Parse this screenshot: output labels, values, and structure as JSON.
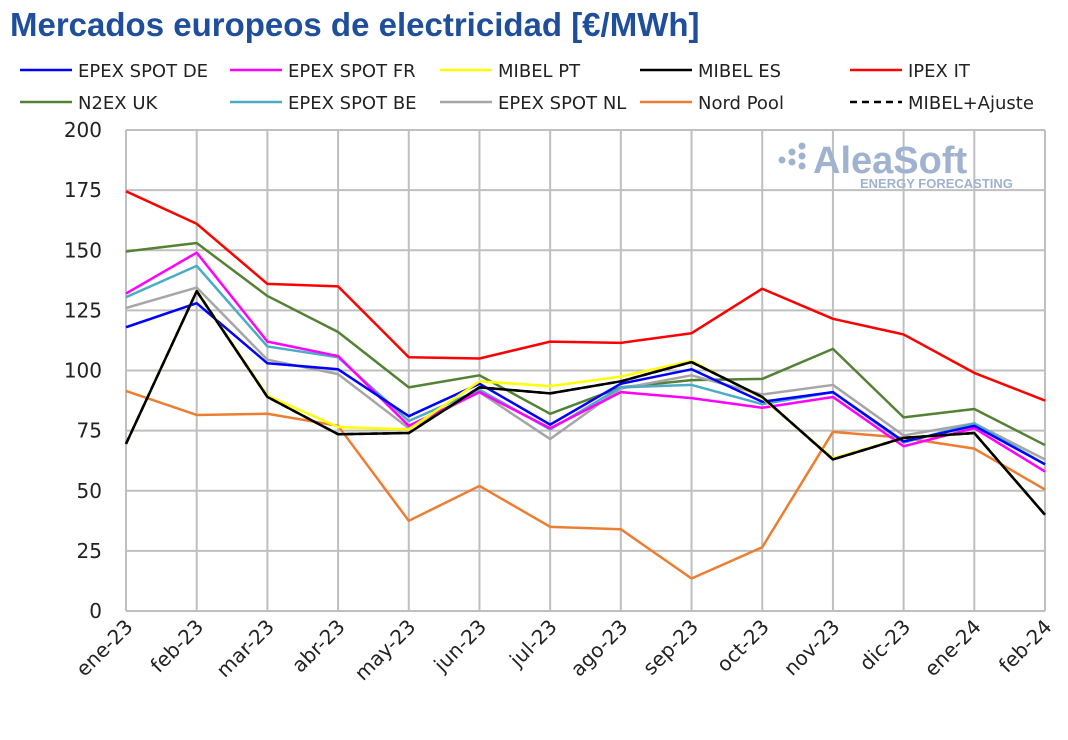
{
  "chart_data": {
    "type": "line",
    "title": "Mercados europeos de electricidad [€/MWh]",
    "xlabel": "",
    "ylabel": "",
    "ylim": [
      0,
      200
    ],
    "yticks": [
      0,
      25,
      50,
      75,
      100,
      125,
      150,
      175,
      200
    ],
    "grid": true,
    "legend_position": "top",
    "categories": [
      "ene-23",
      "feb-23",
      "mar-23",
      "abr-23",
      "may-23",
      "jun-23",
      "jul-23",
      "ago-23",
      "sep-23",
      "oct-23",
      "nov-23",
      "dic-23",
      "ene-24",
      "feb-24"
    ],
    "series": [
      {
        "name": "EPEX SPOT DE",
        "color": "#0000ff",
        "dashed": false,
        "values": [
          118,
          128,
          103,
          100.5,
          81,
          94.5,
          77.5,
          94.5,
          100.5,
          87,
          91,
          70.5,
          77,
          61
        ]
      },
      {
        "name": "EPEX SPOT FR",
        "color": "#ff00ff",
        "dashed": false,
        "values": [
          132,
          149,
          112,
          106,
          77,
          91,
          76,
          91,
          88.5,
          84.5,
          89,
          68.5,
          76,
          58
        ]
      },
      {
        "name": "MIBEL PT",
        "color": "#ffff00",
        "dashed": false,
        "values": [
          69.5,
          133,
          89.5,
          76.5,
          75.5,
          95.5,
          93.5,
          97.5,
          104,
          88.5,
          63.5,
          72,
          74,
          40
        ]
      },
      {
        "name": "MIBEL ES",
        "color": "#000000",
        "dashed": false,
        "values": [
          69.5,
          133,
          89,
          73.5,
          74,
          93,
          90.5,
          95.5,
          103.5,
          89,
          63,
          72,
          74,
          40
        ]
      },
      {
        "name": "IPEX IT",
        "color": "#ff0000",
        "dashed": false,
        "values": [
          174.5,
          161,
          136,
          135,
          105.5,
          105,
          112,
          111.5,
          115.5,
          134,
          121.5,
          115,
          99,
          87.5
        ]
      },
      {
        "name": "N2EX UK",
        "color": "#548235",
        "dashed": false,
        "values": [
          149.5,
          153,
          131,
          116,
          93,
          98,
          82,
          93,
          96,
          96.5,
          109,
          80.5,
          84,
          69
        ]
      },
      {
        "name": "EPEX SPOT BE",
        "color": "#4bacc6",
        "dashed": false,
        "values": [
          130.5,
          143.5,
          110,
          105.5,
          79,
          92,
          75.5,
          93,
          94,
          86,
          91,
          70,
          78,
          61
        ]
      },
      {
        "name": "EPEX SPOT NL",
        "color": "#a6a6a6",
        "dashed": false,
        "values": [
          126,
          134.5,
          104.5,
          98.5,
          76,
          91,
          71.5,
          92.5,
          98,
          90,
          94,
          73,
          78,
          63
        ]
      },
      {
        "name": "Nord Pool",
        "color": "#ed7d31",
        "dashed": false,
        "values": [
          91.5,
          81.5,
          82,
          77,
          37.5,
          52,
          35,
          34,
          13.5,
          26.5,
          74.5,
          72,
          67.5,
          50.5
        ]
      },
      {
        "name": "MIBEL+Ajuste",
        "color": "#000000",
        "dashed": true,
        "values": [
          69.5,
          133,
          89,
          73.5,
          74,
          93,
          90.5,
          95.5,
          103.5,
          89,
          63,
          72,
          74,
          40
        ]
      }
    ]
  },
  "logo": {
    "name": "AleaSoft",
    "tagline": "ENERGY FORECASTING"
  }
}
